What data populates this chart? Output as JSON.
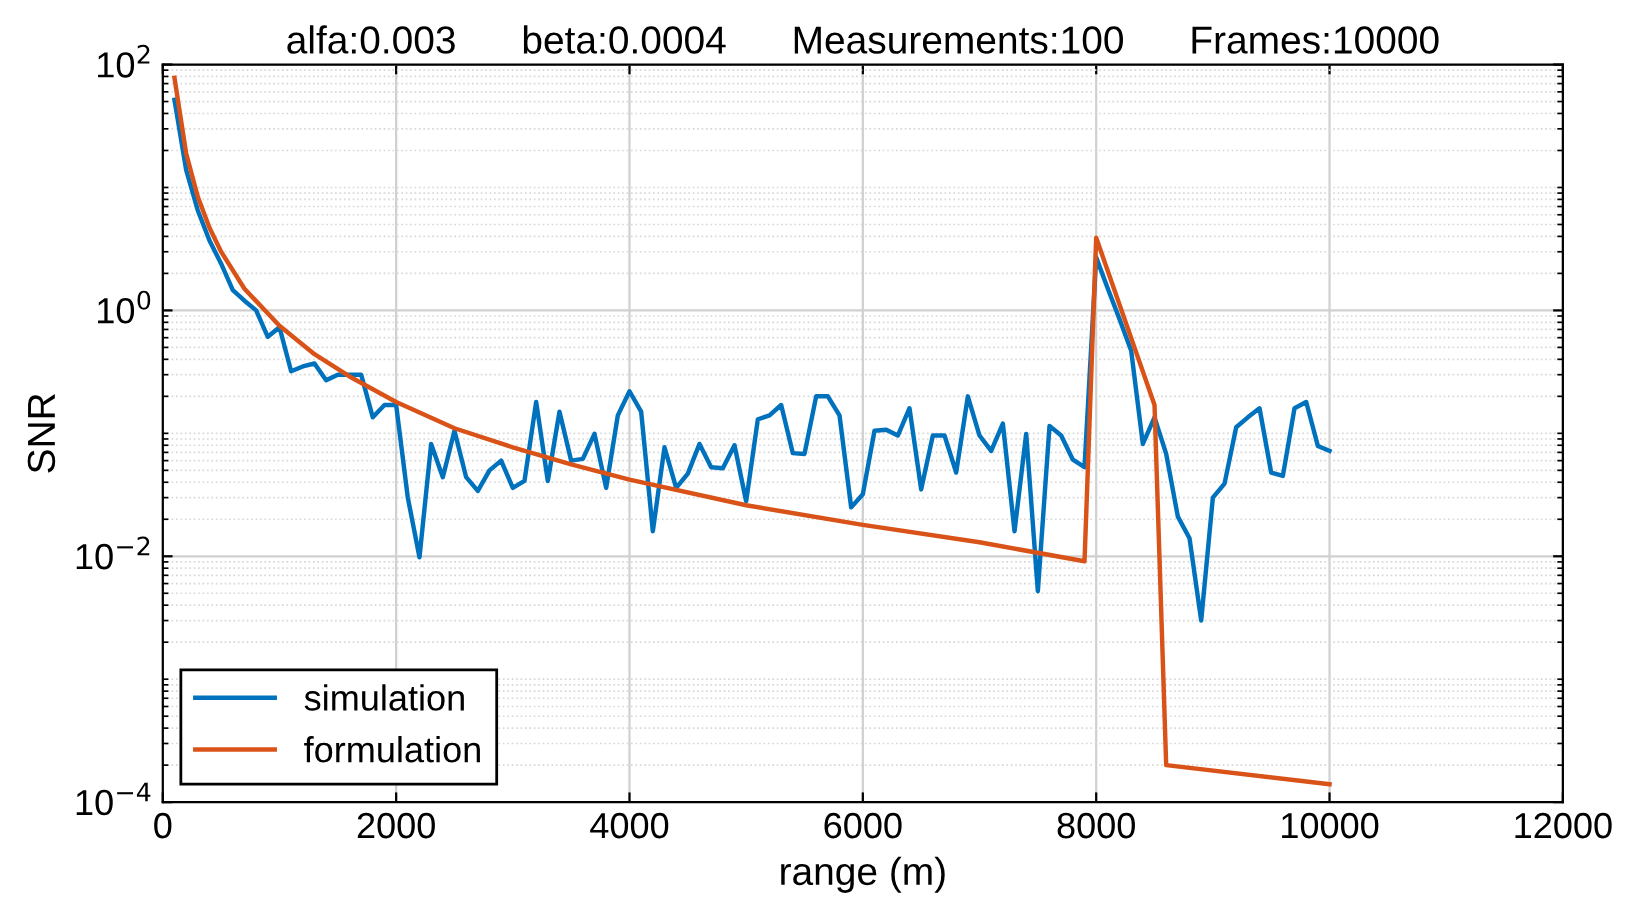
{
  "chart_data": {
    "type": "line",
    "title": "alfa:0.003      beta:0.0004      Measurements:100      Frames:10000",
    "xlabel": "range (m)",
    "ylabel": "SNR",
    "log": "y",
    "grid": true,
    "legend": "bottom left",
    "line_style": "solid",
    "marker": "none",
    "xlim": [
      0,
      12000
    ],
    "xticks": [
      0,
      2000,
      4000,
      6000,
      8000,
      10000,
      12000
    ],
    "ylim": [
      0.0001,
      100
    ],
    "yticks": [
      {
        "value": 0.0001,
        "label": "10$^{−4}$"
      },
      {
        "value": 0.01,
        "label": "10$^{−2}$"
      },
      {
        "value": 1,
        "label": "10$^{0}$"
      },
      {
        "value": 100,
        "label": "10$^{2}$"
      }
    ],
    "series": [
      {
        "name": "simulation",
        "color": "#0072bd",
        "x": [
          100,
          200,
          300,
          400,
          500,
          600,
          700,
          800,
          900,
          1000,
          1100,
          1200,
          1300,
          1400,
          1500,
          1600,
          1700,
          1800,
          1900,
          2000,
          2100,
          2200,
          2300,
          2400,
          2500,
          2600,
          2700,
          2800,
          2900,
          3000,
          3100,
          3200,
          3300,
          3400,
          3500,
          3600,
          3700,
          3800,
          3900,
          4000,
          4100,
          4200,
          4300,
          4400,
          4500,
          4600,
          4700,
          4800,
          4900,
          5000,
          5100,
          5200,
          5300,
          5400,
          5500,
          5600,
          5700,
          5800,
          5900,
          6000,
          6100,
          6200,
          6300,
          6400,
          6500,
          6600,
          6700,
          6800,
          6900,
          7000,
          7100,
          7200,
          7300,
          7400,
          7500,
          7600,
          7700,
          7800,
          7900,
          8000,
          8100,
          8200,
          8300,
          8400,
          8500,
          8600,
          8700,
          8800,
          8900,
          9000,
          9100,
          9200,
          9300,
          9400,
          9500,
          9600,
          9700,
          9800,
          9900,
          10000
        ],
        "values": [
          51.6,
          13.9,
          6.5,
          3.7,
          2.4,
          1.46,
          1.2,
          1.0,
          0.61,
          0.73,
          0.32,
          0.35,
          0.37,
          0.27,
          0.3,
          0.3,
          0.3,
          0.135,
          0.17,
          0.17,
          0.03,
          0.0098,
          0.082,
          0.044,
          0.105,
          0.044,
          0.034,
          0.05,
          0.06,
          0.036,
          0.041,
          0.18,
          0.041,
          0.15,
          0.06,
          0.062,
          0.099,
          0.036,
          0.14,
          0.22,
          0.15,
          0.016,
          0.077,
          0.036,
          0.047,
          0.082,
          0.053,
          0.052,
          0.08,
          0.028,
          0.13,
          0.14,
          0.17,
          0.069,
          0.068,
          0.2,
          0.2,
          0.14,
          0.025,
          0.032,
          0.105,
          0.107,
          0.096,
          0.16,
          0.035,
          0.096,
          0.096,
          0.048,
          0.2,
          0.096,
          0.072,
          0.12,
          0.016,
          0.099,
          0.0052,
          0.115,
          0.096,
          0.061,
          0.053,
          2.7,
          1.5,
          0.85,
          0.47,
          0.082,
          0.135,
          0.068,
          0.021,
          0.014,
          0.003,
          0.03,
          0.039,
          0.112,
          0.135,
          0.16,
          0.048,
          0.045,
          0.16,
          0.18,
          0.079,
          0.072
        ]
      },
      {
        "name": "formulation",
        "color": "#d95319",
        "x": [
          100,
          200,
          300,
          400,
          500,
          700,
          1000,
          1300,
          1600,
          2000,
          2500,
          3000,
          3500,
          4000,
          5000,
          6000,
          7000,
          7900,
          8000,
          8500,
          8600,
          10000
        ],
        "values": [
          78,
          19,
          8.4,
          4.7,
          3.0,
          1.5,
          0.75,
          0.44,
          0.29,
          0.18,
          0.11,
          0.077,
          0.056,
          0.042,
          0.026,
          0.018,
          0.013,
          0.0091,
          3.9,
          0.17,
          0.0002,
          0.00014
        ]
      }
    ]
  }
}
